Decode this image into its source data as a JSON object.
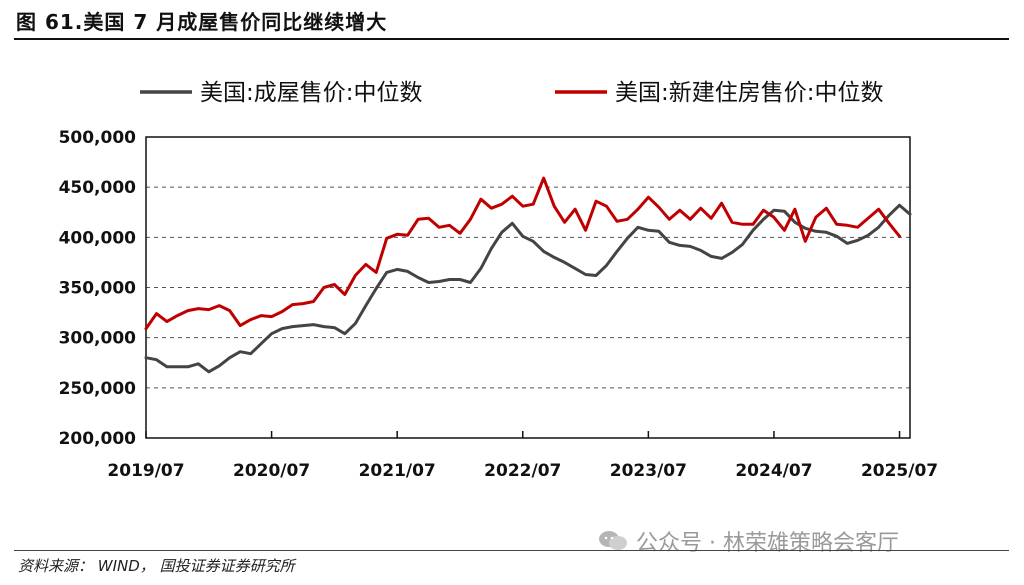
{
  "header": {
    "title": "图 61.美国 7 月成屋售价同比继续增大"
  },
  "footer": {
    "source": "资料来源： WIND， 国投证券证券研究所"
  },
  "watermark": {
    "text": "公众号 · 林荣雄策略会客厅",
    "icon": "wechat-icon"
  },
  "chart_data": {
    "type": "line",
    "xlabel": "",
    "ylabel": "",
    "ylim": [
      200000,
      500000
    ],
    "yticks": [
      200000,
      250000,
      300000,
      350000,
      400000,
      450000,
      500000
    ],
    "ytick_labels": [
      "200,000",
      "250,000",
      "300,000",
      "350,000",
      "400,000",
      "450,000",
      "500,000"
    ],
    "xlim": [
      0,
      73
    ],
    "xticks": [
      0,
      12,
      24,
      36,
      48,
      60,
      72
    ],
    "xtick_labels": [
      "2019/07",
      "2020/07",
      "2021/07",
      "2022/07",
      "2023/07",
      "2024/07",
      "2025/07"
    ],
    "grid": "horizontal-dashed",
    "legend": "top",
    "series": [
      {
        "name": "美国:成屋售价:中位数",
        "color": "#444444",
        "values": [
          280000,
          278000,
          271000,
          271000,
          271000,
          274000,
          266000,
          272000,
          280000,
          286000,
          284000,
          294000,
          304000,
          309000,
          311000,
          312000,
          313000,
          311000,
          310000,
          304000,
          314000,
          332000,
          349000,
          365000,
          368000,
          366000,
          360000,
          355000,
          356000,
          358000,
          358000,
          355000,
          369000,
          389000,
          405000,
          414000,
          401000,
          396000,
          386000,
          380000,
          375000,
          369000,
          363000,
          362000,
          372000,
          386000,
          399000,
          410000,
          407000,
          406000,
          395000,
          392000,
          391000,
          387000,
          381000,
          379000,
          385000,
          393000,
          407000,
          418000,
          427000,
          426000,
          415000,
          409000,
          406000,
          405000,
          401000,
          394000,
          397000,
          402000,
          410000,
          422000,
          432000,
          423000
        ]
      },
      {
        "name": "美国:新建住房售价:中位数",
        "color": "#c00000",
        "values": [
          309000,
          324000,
          316000,
          322000,
          327000,
          329000,
          328000,
          332000,
          327000,
          312000,
          318000,
          322000,
          321000,
          326000,
          333000,
          334000,
          336000,
          350000,
          353000,
          343000,
          362000,
          373000,
          365000,
          399000,
          403000,
          402000,
          418000,
          419000,
          410000,
          412000,
          404000,
          418000,
          438000,
          429000,
          433000,
          441000,
          431000,
          433000,
          459000,
          431000,
          415000,
          428000,
          407000,
          436000,
          431000,
          416000,
          418000,
          428000,
          440000,
          430000,
          418000,
          427000,
          418000,
          429000,
          419000,
          434000,
          415000,
          413000,
          413000,
          427000,
          420000,
          407000,
          428000,
          396000,
          420000,
          429000,
          413000,
          412000,
          410000,
          419000,
          428000,
          414000,
          401000
        ]
      }
    ]
  }
}
